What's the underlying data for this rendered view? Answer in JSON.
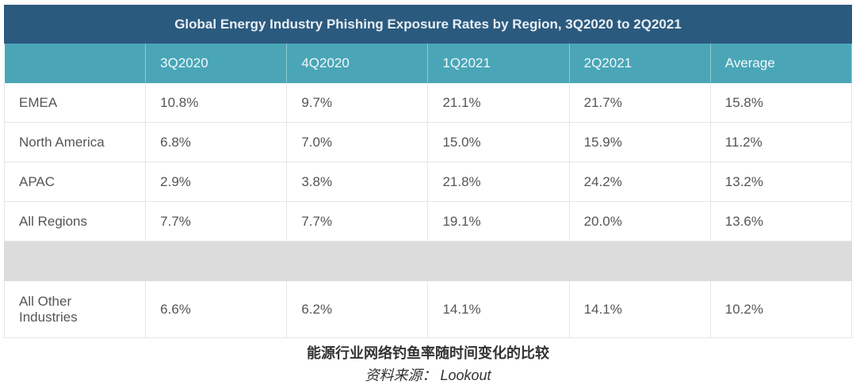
{
  "chart_data": {
    "type": "table",
    "title": "Global Energy Industry Phishing Exposure Rates by Region, 3Q2020 to 2Q2021",
    "columns": [
      "",
      "3Q2020",
      "4Q2020",
      "1Q2021",
      "2Q2021",
      "Average"
    ],
    "rows": [
      [
        "EMEA",
        "10.8%",
        "9.7%",
        "21.1%",
        "21.7%",
        "15.8%"
      ],
      [
        "North America",
        "6.8%",
        "7.0%",
        "15.0%",
        "15.9%",
        "11.2%"
      ],
      [
        "APAC",
        "2.9%",
        "3.8%",
        "21.8%",
        "24.2%",
        "13.2%"
      ],
      [
        "All Regions",
        "7.7%",
        "7.7%",
        "19.1%",
        "20.0%",
        "13.6%"
      ],
      [
        "All Other Industries",
        "6.6%",
        "6.2%",
        "14.1%",
        "14.1%",
        "10.2%"
      ]
    ]
  },
  "caption": "能源行业网络钓鱼率随时间变化的比较",
  "source": "资料来源： Lookout",
  "colors": {
    "title_bg": "#2b5a7f",
    "header_bg": "#4aa6b7",
    "separator": "#dcdcdc"
  }
}
